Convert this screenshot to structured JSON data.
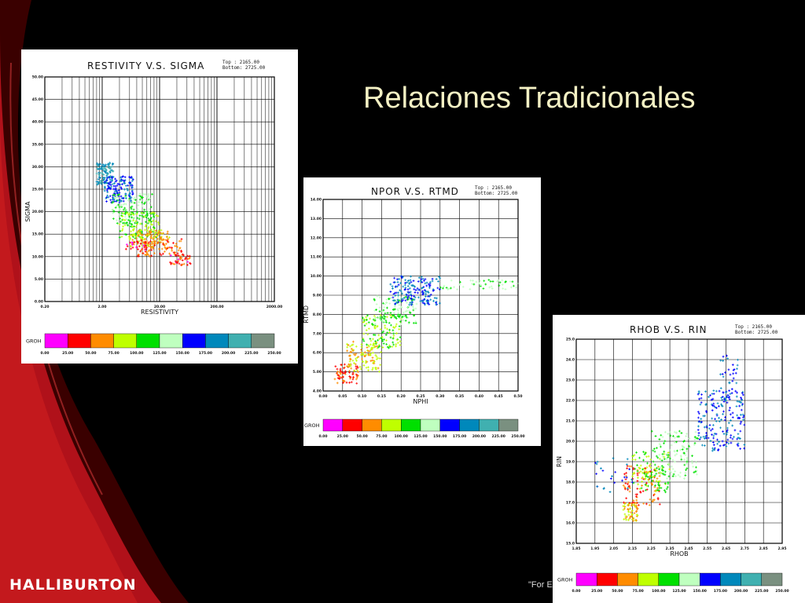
{
  "slide": {
    "title": "Relaciones Tradicionales",
    "brand": "HALLIBURTON",
    "footer_note": "\"For E",
    "colors": {
      "background": "#000000",
      "swoosh_dark": "#5a0000",
      "swoosh_red": "#c0141a",
      "title_text": "#f4f1c4"
    }
  },
  "colorbar": {
    "label": "GROH",
    "colors": [
      "#ff00ff",
      "#ff0000",
      "#ff8c00",
      "#bfff00",
      "#00e000",
      "#bfffbf",
      "#0000ff",
      "#0088bb",
      "#40b0b0",
      "#7a9080"
    ],
    "ticks": [
      "0.00",
      "25.00",
      "50.00",
      "75.00",
      "100.00",
      "125.00",
      "150.00",
      "175.00",
      "200.00",
      "225.00",
      "250.00"
    ]
  },
  "chart_data": [
    {
      "type": "scatter",
      "title": "RESTIVITY V.S. SIGMA",
      "meta": [
        "Top    : 2165.00",
        "Bottom: 2725.00"
      ],
      "xlabel": "RESISTIVITY",
      "ylabel": "SIGMA",
      "x_scale": "log",
      "xlim": [
        0.2,
        2000
      ],
      "ylim": [
        0,
        50
      ],
      "x_ticks": [
        "0.20",
        "2.00",
        "20.00",
        "200.00",
        "2000.00"
      ],
      "y_ticks": [
        "0.00",
        "5.00",
        "10.00",
        "15.00",
        "20.00",
        "25.00",
        "30.00",
        "35.00",
        "40.00",
        "45.00",
        "50.00"
      ],
      "grid": true,
      "color_by": "GROH",
      "clusters": [
        {
          "x": [
            1.6,
            3.2
          ],
          "y": [
            26,
            31
          ],
          "groh": 200,
          "n": 110
        },
        {
          "x": [
            2.2,
            7
          ],
          "y": [
            22,
            28
          ],
          "groh": 170,
          "n": 140
        },
        {
          "x": [
            3,
            15
          ],
          "y": [
            17,
            24
          ],
          "groh": 125,
          "n": 140
        },
        {
          "x": [
            4,
            20
          ],
          "y": [
            14,
            20
          ],
          "groh": 100,
          "n": 110
        },
        {
          "x": [
            6,
            30
          ],
          "y": [
            12,
            16
          ],
          "groh": 70,
          "n": 120
        },
        {
          "x": [
            8,
            50
          ],
          "y": [
            10,
            14
          ],
          "groh": 55,
          "n": 90
        },
        {
          "x": [
            30,
            70
          ],
          "y": [
            8,
            10.5
          ],
          "groh": 40,
          "n": 40
        },
        {
          "x": [
            5,
            12
          ],
          "y": [
            11.5,
            13.5
          ],
          "groh": 30,
          "n": 25
        }
      ]
    },
    {
      "type": "scatter",
      "title": "NPOR V.S. RTMD",
      "meta": [
        "Top    : 2165.00",
        "Bottom: 2725.00"
      ],
      "xlabel": "NPHI",
      "ylabel": "RTMD",
      "xlim": [
        0,
        0.5
      ],
      "ylim": [
        4,
        14
      ],
      "x_ticks": [
        "0.00",
        "0.05",
        "0.10",
        "0.15",
        "0.20",
        "0.25",
        "0.30",
        "0.35",
        "0.40",
        "0.45",
        "0.50"
      ],
      "y_ticks": [
        "4.00",
        "5.00",
        "6.00",
        "7.00",
        "8.00",
        "9.00",
        "10.00",
        "11.00",
        "12.00",
        "13.00",
        "14.00"
      ],
      "grid": true,
      "color_by": "GROH",
      "clusters": [
        {
          "x": [
            0.03,
            0.09
          ],
          "y": [
            4.4,
            5.4
          ],
          "groh": 50,
          "n": 70
        },
        {
          "x": [
            0.06,
            0.15
          ],
          "y": [
            5.0,
            6.6
          ],
          "groh": 75,
          "n": 110
        },
        {
          "x": [
            0.1,
            0.2
          ],
          "y": [
            6.2,
            8.0
          ],
          "groh": 100,
          "n": 120
        },
        {
          "x": [
            0.13,
            0.24
          ],
          "y": [
            7.5,
            9.0
          ],
          "groh": 125,
          "n": 120
        },
        {
          "x": [
            0.17,
            0.3
          ],
          "y": [
            8.5,
            10.0
          ],
          "groh": 175,
          "n": 170
        },
        {
          "x": [
            0.3,
            0.5
          ],
          "y": [
            9.3,
            9.8
          ],
          "groh": 130,
          "n": 50
        }
      ]
    },
    {
      "type": "scatter",
      "title": "RHOB V.S. RIN",
      "meta": [
        "Top    : 2165.00",
        "Bottom: 2725.00"
      ],
      "xlabel": "RHOB",
      "ylabel": "RIN",
      "xlim": [
        1.85,
        2.95
      ],
      "ylim": [
        15,
        25
      ],
      "x_ticks": [
        "1.85",
        "1.95",
        "2.05",
        "2.15",
        "2.25",
        "2.35",
        "2.45",
        "2.55",
        "2.65",
        "2.75",
        "2.85",
        "2.95"
      ],
      "y_ticks": [
        "15.0",
        "16.0",
        "17.0",
        "18.0",
        "19.0",
        "20.0",
        "21.0",
        "22.0",
        "23.0",
        "24.0",
        "25.0"
      ],
      "grid": true,
      "color_by": "GROH",
      "clusters": [
        {
          "x": [
            2.1,
            2.18
          ],
          "y": [
            16.1,
            17.0
          ],
          "groh": 75,
          "n": 60
        },
        {
          "x": [
            2.1,
            2.3
          ],
          "y": [
            16.8,
            18.8
          ],
          "groh": 55,
          "n": 100
        },
        {
          "x": [
            2.15,
            2.35
          ],
          "y": [
            17.5,
            19.5
          ],
          "groh": 100,
          "n": 110
        },
        {
          "x": [
            2.25,
            2.5
          ],
          "y": [
            18,
            20.5
          ],
          "groh": 130,
          "n": 140
        },
        {
          "x": [
            2.5,
            2.75
          ],
          "y": [
            19.5,
            22.5
          ],
          "groh": 175,
          "n": 180
        },
        {
          "x": [
            2.62,
            2.72
          ],
          "y": [
            22,
            24.2
          ],
          "groh": 175,
          "n": 40
        },
        {
          "x": [
            1.95,
            2.15
          ],
          "y": [
            17.5,
            19.2
          ],
          "groh": 175,
          "n": 25
        }
      ]
    }
  ]
}
